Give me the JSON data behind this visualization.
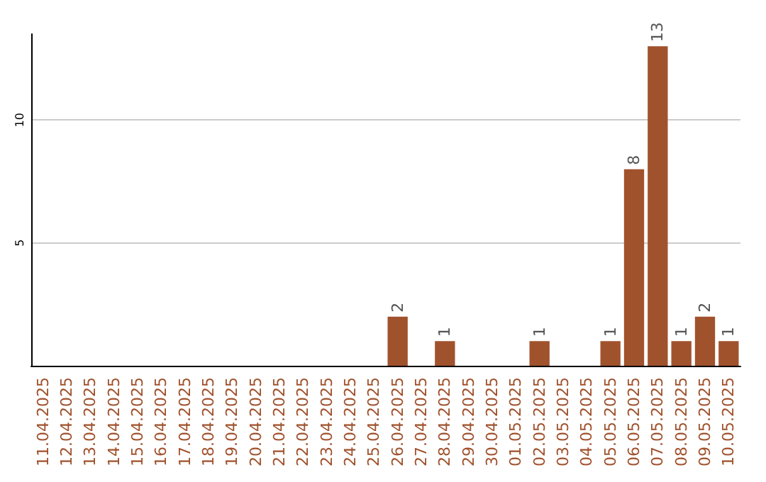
{
  "chart_data": {
    "type": "bar",
    "categories": [
      "11.04.2025",
      "12.04.2025",
      "13.04.2025",
      "14.04.2025",
      "15.04.2025",
      "16.04.2025",
      "17.04.2025",
      "18.04.2025",
      "19.04.2025",
      "20.04.2025",
      "21.04.2025",
      "22.04.2025",
      "23.04.2025",
      "24.04.2025",
      "25.04.2025",
      "26.04.2025",
      "27.04.2025",
      "28.04.2025",
      "29.04.2025",
      "30.04.2025",
      "01.05.2025",
      "02.05.2025",
      "03.05.2025",
      "04.05.2025",
      "05.05.2025",
      "06.05.2025",
      "07.05.2025",
      "08.05.2025",
      "09.05.2025",
      "10.05.2025"
    ],
    "values": [
      0,
      0,
      0,
      0,
      0,
      0,
      0,
      0,
      0,
      0,
      0,
      0,
      0,
      0,
      0,
      2,
      0,
      1,
      0,
      0,
      0,
      1,
      0,
      0,
      1,
      8,
      13,
      1,
      2,
      1
    ],
    "value_labels": [
      null,
      null,
      null,
      null,
      null,
      null,
      null,
      null,
      null,
      null,
      null,
      null,
      null,
      null,
      null,
      "2",
      null,
      "1",
      null,
      null,
      null,
      "1",
      null,
      null,
      "1",
      "8",
      "13",
      "1",
      "2",
      "1"
    ],
    "color": "#a0522d",
    "ylim": [
      0,
      13.5
    ],
    "yticks": [
      5,
      10
    ],
    "grid": "y"
  }
}
